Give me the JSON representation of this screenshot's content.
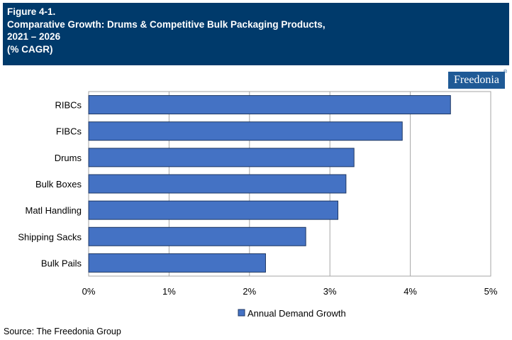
{
  "header": {
    "figure_label": "Figure 4-1.",
    "title_line1": "Comparative Growth: Drums & Competitive Bulk Packaging Products,",
    "title_line2": "2021 – 2026",
    "unit": "(% CAGR)"
  },
  "logo": {
    "text": "Freedonia",
    "mark": "®"
  },
  "source": "Source: The Freedonia Group",
  "colors": {
    "header_bg": "#003a6b",
    "bar": "#4472c4",
    "bar_stroke": "#1f3864",
    "grid": "#a6a6a6"
  },
  "chart_data": {
    "type": "bar",
    "orientation": "horizontal",
    "categories": [
      "RIBCs",
      "FIBCs",
      "Drums",
      "Bulk Boxes",
      "Matl Handling",
      "Shipping Sacks",
      "Bulk Pails"
    ],
    "series": [
      {
        "name": "Annual Demand Growth",
        "values": [
          4.5,
          3.9,
          3.3,
          3.2,
          3.1,
          2.7,
          2.2
        ]
      }
    ],
    "x_ticks": [
      "0%",
      "1%",
      "2%",
      "3%",
      "4%",
      "5%"
    ],
    "xlim": [
      0,
      5
    ],
    "grid": true,
    "legend_position": "bottom"
  }
}
